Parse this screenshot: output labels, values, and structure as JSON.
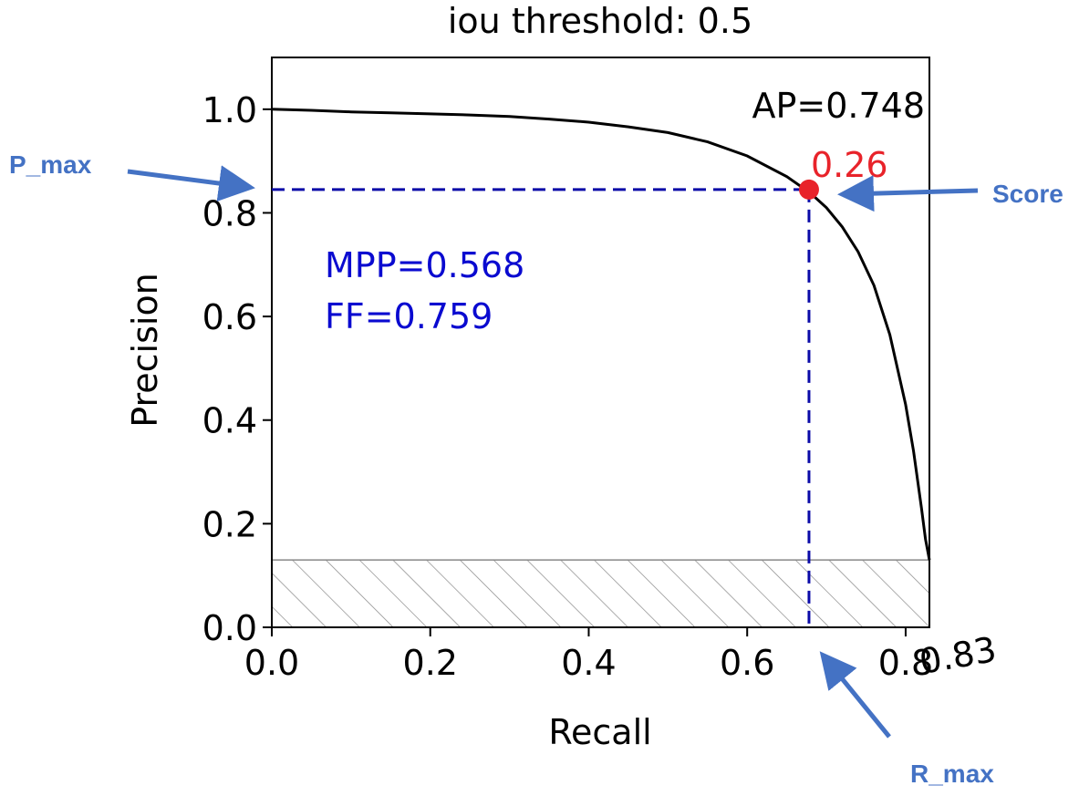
{
  "chart_data": {
    "type": "line",
    "title": "iou threshold: 0.5",
    "xlabel": "Recall",
    "ylabel": "Precision",
    "xlim": [
      0,
      0.83
    ],
    "ylim": [
      0,
      1.1
    ],
    "x_ticks": [
      "0.0",
      "0.2",
      "0.4",
      "0.6",
      "0.8"
    ],
    "x_tick_values": [
      0,
      0.2,
      0.4,
      0.6,
      0.8
    ],
    "y_ticks": [
      "0.0",
      "0.2",
      "0.4",
      "0.6",
      "0.8",
      "1.0"
    ],
    "y_tick_values": [
      0,
      0.2,
      0.4,
      0.6,
      0.8,
      1.0
    ],
    "grid": false,
    "series": [
      {
        "x": [
          0.0,
          0.05,
          0.1,
          0.15,
          0.2,
          0.25,
          0.3,
          0.35,
          0.4,
          0.45,
          0.5,
          0.55,
          0.6,
          0.65,
          0.68,
          0.7,
          0.72,
          0.74,
          0.76,
          0.78,
          0.8,
          0.81,
          0.82,
          0.825,
          0.83
        ],
        "y": [
          1.0,
          0.998,
          0.995,
          0.993,
          0.991,
          0.989,
          0.986,
          0.981,
          0.975,
          0.966,
          0.955,
          0.937,
          0.91,
          0.87,
          0.838,
          0.81,
          0.773,
          0.725,
          0.66,
          0.565,
          0.43,
          0.34,
          0.23,
          0.17,
          0.13
        ],
        "color": "#000000"
      }
    ],
    "hatched_region": {
      "y_max": 0.13,
      "color": "#888888"
    },
    "marker": {
      "x": 0.678,
      "y": 0.845,
      "label": "0.26",
      "color": "#e8232a"
    },
    "guide_color": "#0a0aa8",
    "annotations": {
      "ap": "AP=0.748",
      "mpp": "MPP=0.568",
      "ff": "FF=0.759",
      "xmax_label": "0.83",
      "text_color": "#0a0ad0"
    }
  },
  "callouts": {
    "p_max": "P_max",
    "score": "Score",
    "r_max": "R_max",
    "color": "#4472c4"
  }
}
